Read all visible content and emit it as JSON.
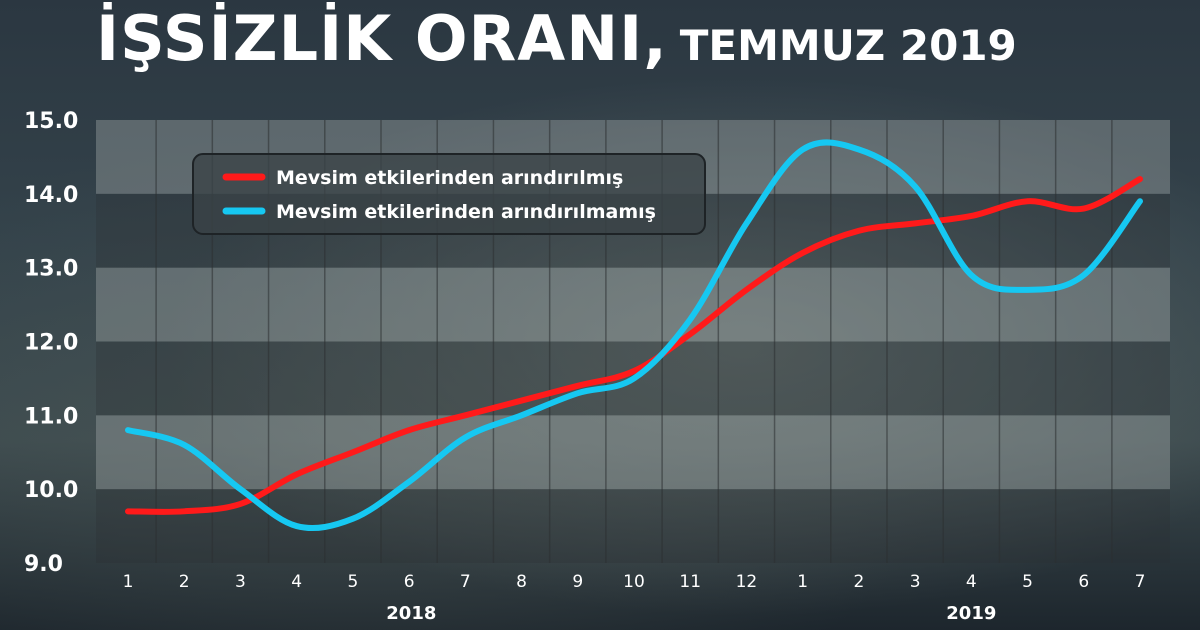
{
  "title": "İŞSİZLİK ORANI,",
  "subtitle": "TEMMUZ 2019",
  "colors": {
    "series1": "#ff1a1a",
    "series2": "#16c8f2",
    "band_light": "#9ea4a4",
    "band_dark": "#2c3033"
  },
  "chart_data": {
    "type": "line",
    "title": "İŞSİZLİK ORANI, TEMMUZ 2019",
    "xlabel": "",
    "ylabel": "",
    "ylim": [
      9.0,
      15.0
    ],
    "yticks": [
      "9.0",
      "10.0",
      "11.0",
      "12.0",
      "13.0",
      "14.0",
      "15.0"
    ],
    "x": [
      "1",
      "2",
      "3",
      "4",
      "5",
      "6",
      "7",
      "8",
      "9",
      "10",
      "11",
      "12",
      "1",
      "2",
      "3",
      "4",
      "5",
      "6",
      "7"
    ],
    "years": [
      {
        "label": "2018",
        "at": "7"
      },
      {
        "label": "2019",
        "at": "4"
      }
    ],
    "legend_position": "top-left",
    "grid": true,
    "series": [
      {
        "name": "Mevsim etkilerinden arındırılmış",
        "values": [
          9.7,
          9.7,
          9.8,
          10.2,
          10.5,
          10.8,
          11.0,
          11.2,
          11.4,
          11.6,
          12.1,
          12.7,
          13.2,
          13.5,
          13.6,
          13.7,
          13.9,
          13.8,
          14.2
        ]
      },
      {
        "name": "Mevsim etkilerinden arındırılmamış",
        "values": [
          10.8,
          10.6,
          10.0,
          9.5,
          9.6,
          10.1,
          10.7,
          11.0,
          11.3,
          11.5,
          12.3,
          13.6,
          14.6,
          14.6,
          14.1,
          12.9,
          12.7,
          12.9,
          13.9
        ]
      }
    ]
  }
}
